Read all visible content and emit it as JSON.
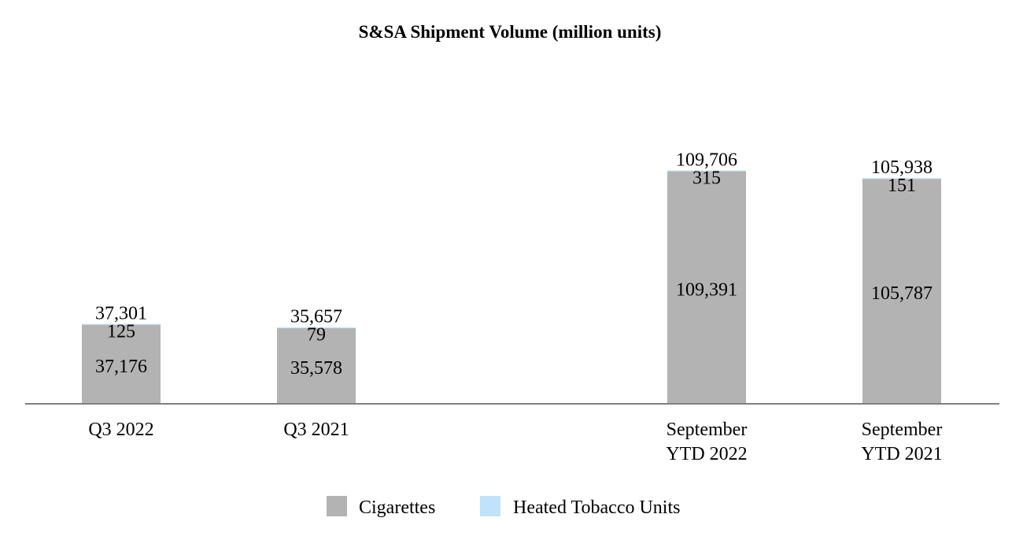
{
  "chart_data": {
    "type": "bar",
    "stacked": true,
    "title": "S&SA Shipment Volume (million units)",
    "xlabel": "",
    "ylabel": "",
    "categories": [
      [
        "Q3 2022"
      ],
      [
        "Q3 2021"
      ],
      [
        "September",
        "YTD 2022"
      ],
      [
        "September",
        "YTD 2021"
      ]
    ],
    "series": [
      {
        "name": "Cigarettes",
        "color": "#b3b3b3",
        "values": [
          37176,
          35578,
          109391,
          105787
        ],
        "labels": [
          "37,176",
          "35,578",
          "109,391",
          "105,787"
        ]
      },
      {
        "name": "Heated Tobacco Units",
        "color": "#bfe3fa",
        "values": [
          125,
          79,
          315,
          151
        ],
        "labels": [
          "125",
          "79",
          "315",
          "151"
        ]
      }
    ],
    "totals": [
      37301,
      35657,
      109706,
      105938
    ],
    "total_labels": [
      "37,301",
      "35,657",
      "109,706",
      "105,938"
    ],
    "ylim": [
      0,
      130000
    ],
    "grid": false,
    "legend_position": "bottom",
    "axis_color": "#808080"
  }
}
